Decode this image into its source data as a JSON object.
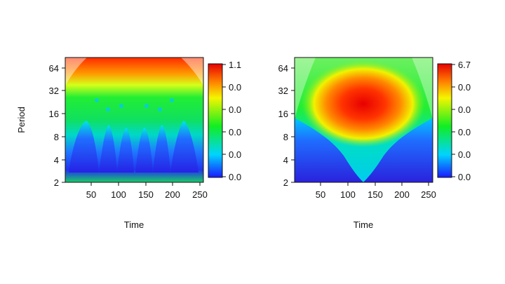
{
  "chart_data": [
    {
      "type": "heatmap",
      "xlabel": "Time",
      "ylabel": "Period",
      "x_ticks": [
        50,
        100,
        150,
        200,
        250
      ],
      "y_ticks": [
        2,
        4,
        8,
        16,
        32,
        64
      ],
      "y_scale": "log2",
      "xlim": [
        0,
        256
      ],
      "ylim": [
        2,
        96
      ],
      "colorbar_labels": [
        "1.1",
        "0.0",
        "0.0",
        "0.0",
        "0.0",
        "0.0"
      ],
      "colormap": [
        "#1a1aff",
        "#00d4ff",
        "#11ee22",
        "#f5f500",
        "#ff7a00",
        "#e60000"
      ],
      "pattern": "dominant high power at periods near 64 across the mid time range; cone-shaped lobes of moderate power at periods 2-12 repeating about 7 times; low power (blue) at short periods inside lobes",
      "cone_of_influence": true
    },
    {
      "type": "heatmap",
      "xlabel": "Time",
      "ylabel": "",
      "x_ticks": [
        50,
        100,
        150,
        200,
        250
      ],
      "y_ticks": [
        2,
        4,
        8,
        16,
        32,
        64
      ],
      "y_scale": "log2",
      "xlim": [
        0,
        256
      ],
      "ylim": [
        2,
        96
      ],
      "colorbar_labels": [
        "6.7",
        "0.0",
        "0.0",
        "0.0",
        "0.0",
        "0.0"
      ],
      "colormap": [
        "#1a1aff",
        "#00d4ff",
        "#11ee22",
        "#f5f500",
        "#ff7a00",
        "#e60000"
      ],
      "pattern": "peak power centred near time 130 and period 20; V-shaped low-power region at short periods; cone of influence shading at edges",
      "cone_of_influence": true
    }
  ]
}
